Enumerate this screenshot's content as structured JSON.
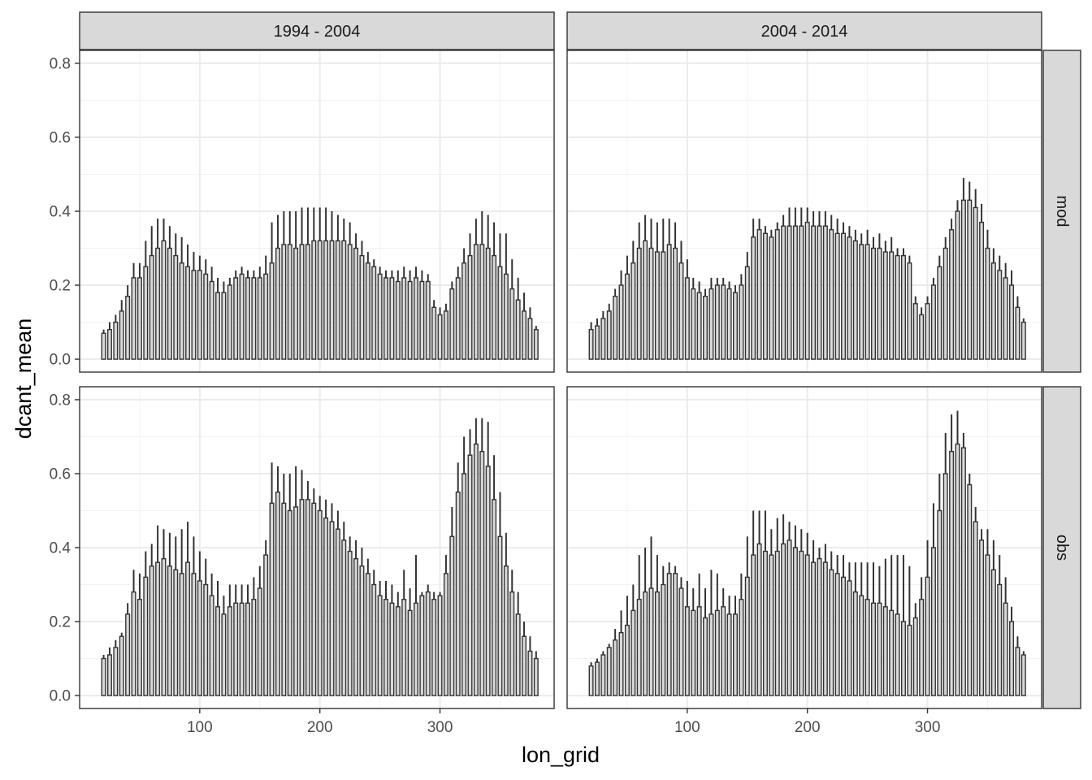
{
  "chart_data": {
    "type": "bar",
    "layout": "facet_grid",
    "xlabel": "lon_grid",
    "ylabel": "dcant_mean",
    "x_ticks": [
      100,
      200,
      300
    ],
    "y_ticks": [
      "0.0",
      "0.2",
      "0.4",
      "0.6",
      "0.8"
    ],
    "xlim": [
      0,
      395
    ],
    "ylim": [
      -0.035,
      0.835
    ],
    "grid": true,
    "bar_fill": "#d9d9d9",
    "bar_edge": "#333333",
    "col_facets": [
      "1994 - 2004",
      "2004 - 2014"
    ],
    "row_facets": [
      "mod",
      "obs"
    ],
    "x": [
      20,
      25,
      30,
      35,
      40,
      45,
      50,
      55,
      60,
      65,
      70,
      75,
      80,
      85,
      90,
      95,
      100,
      105,
      110,
      115,
      120,
      125,
      130,
      135,
      140,
      145,
      150,
      155,
      160,
      165,
      170,
      175,
      180,
      185,
      190,
      195,
      200,
      205,
      210,
      215,
      220,
      225,
      230,
      235,
      240,
      245,
      250,
      255,
      260,
      265,
      270,
      275,
      280,
      285,
      290,
      295,
      300,
      305,
      310,
      315,
      320,
      325,
      330,
      335,
      340,
      345,
      350,
      355,
      360,
      365,
      370,
      375,
      380
    ],
    "panels": [
      {
        "period": "1994 - 2004",
        "type": "mod",
        "values": [
          0.07,
          0.08,
          0.1,
          0.13,
          0.17,
          0.22,
          0.22,
          0.25,
          0.28,
          0.3,
          0.32,
          0.3,
          0.28,
          0.26,
          0.25,
          0.24,
          0.24,
          0.23,
          0.21,
          0.18,
          0.18,
          0.2,
          0.22,
          0.23,
          0.22,
          0.22,
          0.22,
          0.23,
          0.26,
          0.3,
          0.31,
          0.31,
          0.3,
          0.31,
          0.31,
          0.32,
          0.32,
          0.32,
          0.32,
          0.32,
          0.32,
          0.31,
          0.3,
          0.28,
          0.26,
          0.25,
          0.23,
          0.22,
          0.22,
          0.21,
          0.22,
          0.21,
          0.22,
          0.21,
          0.21,
          0.14,
          0.12,
          0.13,
          0.19,
          0.22,
          0.26,
          0.28,
          0.31,
          0.31,
          0.3,
          0.28,
          0.25,
          0.23,
          0.19,
          0.16,
          0.13,
          0.11,
          0.08
        ],
        "whisker_top": [
          0.08,
          0.1,
          0.12,
          0.16,
          0.2,
          0.26,
          0.26,
          0.32,
          0.36,
          0.38,
          0.38,
          0.36,
          0.34,
          0.33,
          0.31,
          0.29,
          0.28,
          0.27,
          0.25,
          0.22,
          0.21,
          0.22,
          0.24,
          0.25,
          0.24,
          0.24,
          0.25,
          0.28,
          0.37,
          0.39,
          0.4,
          0.4,
          0.4,
          0.41,
          0.41,
          0.41,
          0.41,
          0.41,
          0.4,
          0.39,
          0.38,
          0.37,
          0.34,
          0.32,
          0.29,
          0.27,
          0.25,
          0.24,
          0.24,
          0.24,
          0.25,
          0.24,
          0.25,
          0.24,
          0.23,
          0.16,
          0.14,
          0.15,
          0.21,
          0.25,
          0.3,
          0.34,
          0.38,
          0.4,
          0.39,
          0.37,
          0.34,
          0.34,
          0.27,
          0.22,
          0.18,
          0.14,
          0.09
        ]
      },
      {
        "period": "2004 - 2014",
        "type": "mod",
        "values": [
          0.08,
          0.09,
          0.11,
          0.13,
          0.17,
          0.2,
          0.23,
          0.26,
          0.3,
          0.32,
          0.3,
          0.29,
          0.29,
          0.31,
          0.3,
          0.26,
          0.22,
          0.19,
          0.18,
          0.17,
          0.19,
          0.2,
          0.2,
          0.19,
          0.18,
          0.2,
          0.25,
          0.33,
          0.35,
          0.34,
          0.33,
          0.35,
          0.36,
          0.36,
          0.36,
          0.36,
          0.37,
          0.36,
          0.36,
          0.36,
          0.35,
          0.34,
          0.34,
          0.33,
          0.32,
          0.31,
          0.31,
          0.3,
          0.3,
          0.29,
          0.29,
          0.28,
          0.28,
          0.26,
          0.15,
          0.12,
          0.15,
          0.2,
          0.25,
          0.3,
          0.35,
          0.4,
          0.43,
          0.43,
          0.41,
          0.37,
          0.3,
          0.26,
          0.24,
          0.22,
          0.2,
          0.14,
          0.1
        ],
        "whisker_top": [
          0.1,
          0.11,
          0.13,
          0.15,
          0.19,
          0.24,
          0.28,
          0.32,
          0.37,
          0.39,
          0.38,
          0.37,
          0.38,
          0.38,
          0.37,
          0.32,
          0.27,
          0.22,
          0.21,
          0.19,
          0.22,
          0.22,
          0.22,
          0.21,
          0.2,
          0.23,
          0.29,
          0.38,
          0.38,
          0.36,
          0.35,
          0.37,
          0.39,
          0.41,
          0.41,
          0.41,
          0.41,
          0.4,
          0.4,
          0.4,
          0.39,
          0.38,
          0.37,
          0.36,
          0.35,
          0.34,
          0.35,
          0.33,
          0.34,
          0.32,
          0.33,
          0.3,
          0.3,
          0.28,
          0.17,
          0.14,
          0.17,
          0.22,
          0.28,
          0.33,
          0.38,
          0.43,
          0.49,
          0.48,
          0.46,
          0.42,
          0.35,
          0.3,
          0.28,
          0.26,
          0.24,
          0.17,
          0.11
        ]
      },
      {
        "period": "1994 - 2004",
        "type": "obs",
        "values": [
          0.1,
          0.11,
          0.13,
          0.16,
          0.22,
          0.28,
          0.26,
          0.32,
          0.35,
          0.36,
          0.37,
          0.35,
          0.34,
          0.33,
          0.36,
          0.33,
          0.31,
          0.3,
          0.27,
          0.24,
          0.22,
          0.24,
          0.25,
          0.25,
          0.25,
          0.26,
          0.29,
          0.38,
          0.52,
          0.55,
          0.52,
          0.5,
          0.51,
          0.53,
          0.53,
          0.52,
          0.5,
          0.48,
          0.47,
          0.45,
          0.42,
          0.39,
          0.37,
          0.35,
          0.33,
          0.3,
          0.27,
          0.26,
          0.25,
          0.24,
          0.26,
          0.23,
          0.25,
          0.27,
          0.28,
          0.26,
          0.27,
          0.33,
          0.43,
          0.55,
          0.6,
          0.65,
          0.68,
          0.66,
          0.62,
          0.53,
          0.43,
          0.35,
          0.28,
          0.22,
          0.16,
          0.12,
          0.1
        ],
        "whisker_top": [
          0.11,
          0.13,
          0.15,
          0.17,
          0.25,
          0.34,
          0.33,
          0.39,
          0.41,
          0.46,
          0.45,
          0.44,
          0.43,
          0.45,
          0.47,
          0.43,
          0.39,
          0.37,
          0.33,
          0.31,
          0.27,
          0.3,
          0.3,
          0.3,
          0.3,
          0.32,
          0.35,
          0.42,
          0.63,
          0.62,
          0.6,
          0.6,
          0.62,
          0.61,
          0.58,
          0.56,
          0.54,
          0.53,
          0.52,
          0.5,
          0.47,
          0.43,
          0.42,
          0.4,
          0.37,
          0.34,
          0.31,
          0.31,
          0.3,
          0.28,
          0.34,
          0.29,
          0.38,
          0.28,
          0.3,
          0.28,
          0.28,
          0.38,
          0.51,
          0.63,
          0.7,
          0.72,
          0.75,
          0.75,
          0.74,
          0.65,
          0.55,
          0.44,
          0.34,
          0.28,
          0.2,
          0.16,
          0.12
        ]
      },
      {
        "period": "2004 - 2014",
        "type": "obs",
        "values": [
          0.08,
          0.09,
          0.11,
          0.13,
          0.15,
          0.17,
          0.19,
          0.23,
          0.26,
          0.28,
          0.29,
          0.28,
          0.3,
          0.33,
          0.33,
          0.29,
          0.24,
          0.23,
          0.24,
          0.21,
          0.22,
          0.23,
          0.24,
          0.22,
          0.22,
          0.26,
          0.32,
          0.38,
          0.41,
          0.39,
          0.38,
          0.39,
          0.41,
          0.42,
          0.4,
          0.39,
          0.38,
          0.36,
          0.37,
          0.36,
          0.34,
          0.33,
          0.32,
          0.31,
          0.28,
          0.27,
          0.26,
          0.25,
          0.25,
          0.24,
          0.23,
          0.22,
          0.2,
          0.19,
          0.21,
          0.26,
          0.32,
          0.4,
          0.5,
          0.6,
          0.66,
          0.68,
          0.67,
          0.57,
          0.47,
          0.42,
          0.38,
          0.34,
          0.3,
          0.25,
          0.2,
          0.13,
          0.11
        ],
        "whisker_top": [
          0.09,
          0.1,
          0.12,
          0.14,
          0.18,
          0.23,
          0.27,
          0.3,
          0.38,
          0.4,
          0.43,
          0.38,
          0.35,
          0.36,
          0.35,
          0.32,
          0.31,
          0.29,
          0.33,
          0.29,
          0.34,
          0.33,
          0.29,
          0.27,
          0.27,
          0.33,
          0.43,
          0.5,
          0.5,
          0.5,
          0.45,
          0.48,
          0.49,
          0.47,
          0.46,
          0.45,
          0.44,
          0.42,
          0.4,
          0.41,
          0.39,
          0.38,
          0.38,
          0.36,
          0.36,
          0.36,
          0.36,
          0.36,
          0.35,
          0.37,
          0.38,
          0.38,
          0.38,
          0.35,
          0.25,
          0.32,
          0.42,
          0.52,
          0.6,
          0.71,
          0.76,
          0.77,
          0.71,
          0.6,
          0.51,
          0.45,
          0.45,
          0.42,
          0.38,
          0.32,
          0.24,
          0.16,
          0.12
        ]
      }
    ]
  }
}
